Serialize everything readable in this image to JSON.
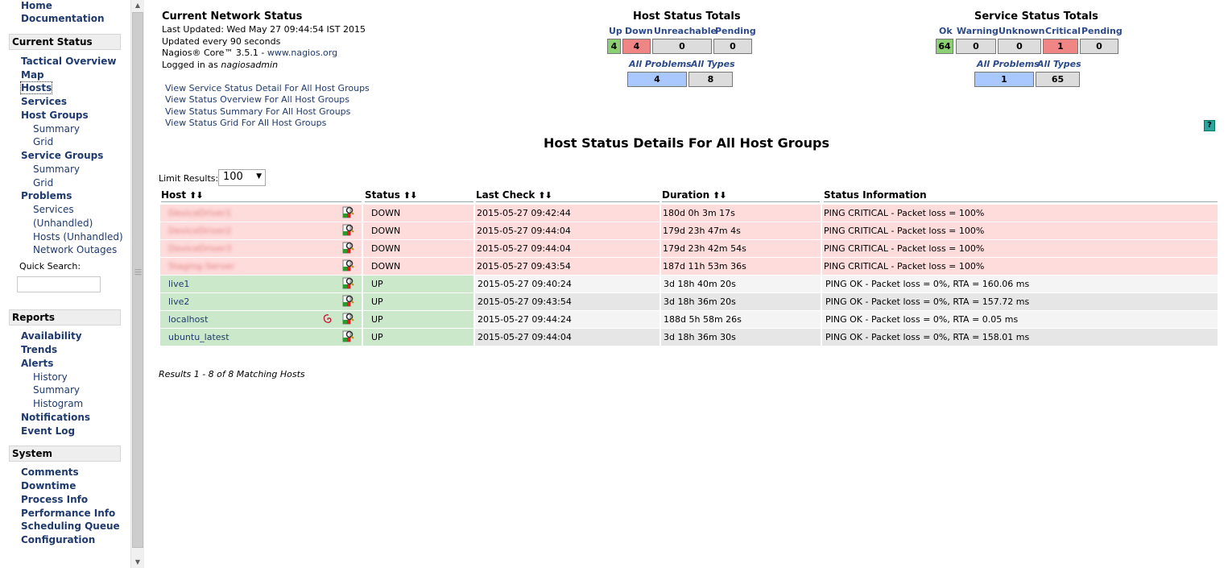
{
  "sidebar": {
    "top_links": [
      "Home",
      "Documentation"
    ],
    "current_status": {
      "header": "Current Status",
      "tactical": "Tactical Overview",
      "map": "Map",
      "hosts": "Hosts",
      "services": "Services",
      "host_groups": "Host Groups",
      "hg_summary": "Summary",
      "hg_grid": "Grid",
      "service_groups": "Service Groups",
      "sg_summary": "Summary",
      "sg_grid": "Grid",
      "problems": "Problems",
      "p_services": "Services",
      "p_unhandled": "(Unhandled)",
      "p_hosts": "Hosts (Unhandled)",
      "p_outages": "Network Outages",
      "quick_search": "Quick Search:"
    },
    "reports": {
      "header": "Reports",
      "availability": "Availability",
      "trends": "Trends",
      "alerts": "Alerts",
      "history": "History",
      "summary": "Summary",
      "histogram": "Histogram",
      "notifications": "Notifications",
      "event_log": "Event Log"
    },
    "system": {
      "header": "System",
      "comments": "Comments",
      "downtime": "Downtime",
      "process_info": "Process Info",
      "performance_info": "Performance Info",
      "scheduling_queue": "Scheduling Queue",
      "configuration": "Configuration"
    }
  },
  "info": {
    "title": "Current Network Status",
    "last_updated": "Last Updated: Wed May 27 09:44:54 IST 2015",
    "updated_every": "Updated every 90 seconds",
    "version_prefix": "Nagios® Core™ 3.5.1 - ",
    "version_link": "www.nagios.org",
    "logged_in_prefix": "Logged in as ",
    "logged_in_user": "nagiosadmin",
    "links": [
      "View Service Status Detail For All Host Groups",
      "View Status Overview For All Host Groups",
      "View Status Summary For All Host Groups",
      "View Status Grid For All Host Groups"
    ]
  },
  "host_totals": {
    "title": "Host Status Totals",
    "labels": [
      "Up",
      "Down",
      "Unreachable",
      "Pending"
    ],
    "values": [
      "4",
      "4",
      "0",
      "0"
    ],
    "problem_labels": [
      "All Problems",
      "All Types"
    ],
    "problem_values": [
      "4",
      "8"
    ]
  },
  "service_totals": {
    "title": "Service Status Totals",
    "labels": [
      "Ok",
      "Warning",
      "Unknown",
      "Critical",
      "Pending"
    ],
    "values": [
      "64",
      "0",
      "0",
      "1",
      "0"
    ],
    "problem_labels": [
      "All Problems",
      "All Types"
    ],
    "problem_values": [
      "1",
      "65"
    ]
  },
  "heading": "Host Status Details For All Host Groups",
  "limit": {
    "label": "Limit Results:",
    "value": "100"
  },
  "table": {
    "headers": [
      "Host",
      "Status",
      "Last Check",
      "Duration",
      "Status Information"
    ],
    "rows": [
      {
        "host": "DeviceDriver1",
        "status": "DOWN",
        "last_check": "2015-05-27 09:42:44",
        "duration": "180d 0h 3m 17s",
        "info": "PING CRITICAL - Packet loss = 100%"
      },
      {
        "host": "DeviceDriver2",
        "status": "DOWN",
        "last_check": "2015-05-27 09:44:04",
        "duration": "179d 23h 47m 4s",
        "info": "PING CRITICAL - Packet loss = 100%"
      },
      {
        "host": "DeviceDriver3",
        "status": "DOWN",
        "last_check": "2015-05-27 09:44:04",
        "duration": "179d 23h 42m 54s",
        "info": "PING CRITICAL - Packet loss = 100%"
      },
      {
        "host": "Staging-Server",
        "status": "DOWN",
        "last_check": "2015-05-27 09:43:54",
        "duration": "187d 11h 53m 36s",
        "info": "PING CRITICAL - Packet loss = 100%"
      },
      {
        "host": "live1",
        "status": "UP",
        "last_check": "2015-05-27 09:40:24",
        "duration": "3d 18h 40m 20s",
        "info": "PING OK - Packet loss = 0%, RTA = 160.06 ms"
      },
      {
        "host": "live2",
        "status": "UP",
        "last_check": "2015-05-27 09:43:54",
        "duration": "3d 18h 36m 20s",
        "info": "PING OK - Packet loss = 0%, RTA = 157.72 ms"
      },
      {
        "host": "localhost",
        "status": "UP",
        "last_check": "2015-05-27 09:44:24",
        "duration": "188d 5h 58m 26s",
        "info": "PING OK - Packet loss = 0%, RTA = 0.05 ms"
      },
      {
        "host": "ubuntu_latest",
        "status": "UP",
        "last_check": "2015-05-27 09:44:04",
        "duration": "3d 18h 36m 30s",
        "info": "PING OK - Packet loss = 0%, RTA = 158.01 ms"
      }
    ]
  },
  "results": "Results 1 - 8 of 8 Matching Hosts",
  "colors": {
    "down": "#ffdcdc",
    "up": "#cbe8cb",
    "ok_box": "#8bd073",
    "critical_box": "#f08585",
    "problem_box": "#a8c8ff"
  }
}
